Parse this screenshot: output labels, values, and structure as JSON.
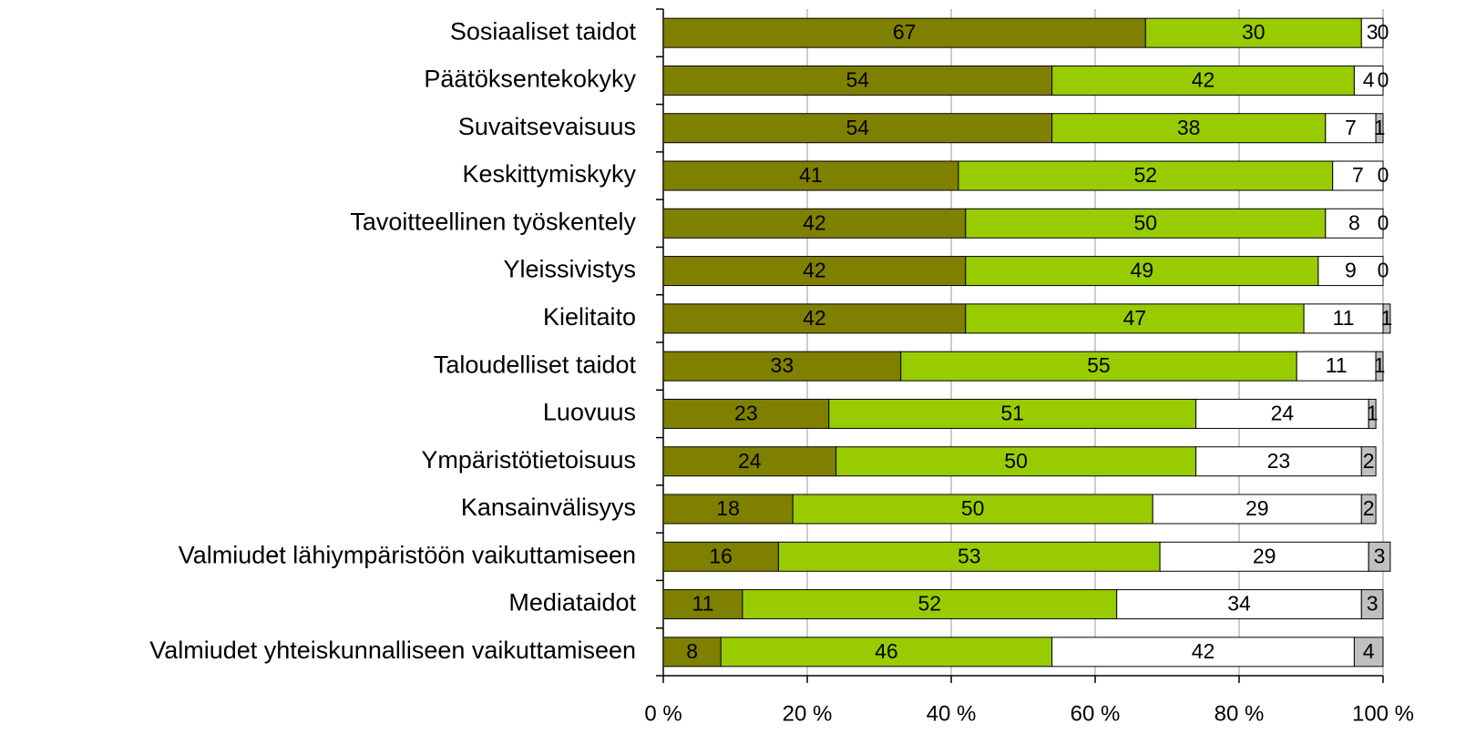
{
  "chart_data": {
    "type": "stacked-bar-horizontal",
    "categories": [
      "Sosiaaliset taidot",
      "Päätöksentekokyky",
      "Suvaitsevaisuus",
      "Keskittymiskyky",
      "Tavoitteellinen työskentely",
      "Yleissivistys",
      "Kielitaito",
      "Taloudelliset taidot",
      "Luovuus",
      "Ympäristötietoisuus",
      "Kansainvälisyys",
      "Valmiudet lähiympäristöön vaikuttamiseen",
      "Mediataidot",
      "Valmiudet yhteiskunnalliseen vaikuttamiseen"
    ],
    "series": [
      {
        "color": "#808000",
        "values": [
          67,
          54,
          54,
          41,
          42,
          42,
          42,
          33,
          23,
          24,
          18,
          16,
          11,
          8
        ]
      },
      {
        "color": "#99cc00",
        "values": [
          30,
          42,
          38,
          52,
          50,
          49,
          47,
          55,
          51,
          50,
          50,
          53,
          52,
          46
        ]
      },
      {
        "color": "#ffffff",
        "values": [
          3,
          4,
          7,
          7,
          8,
          9,
          11,
          11,
          24,
          23,
          29,
          29,
          34,
          42
        ]
      },
      {
        "color": "#c0c0c0",
        "values": [
          0,
          0,
          1,
          0,
          0,
          0,
          1,
          1,
          1,
          2,
          2,
          3,
          3,
          4
        ]
      }
    ],
    "xlim": [
      0,
      100
    ],
    "xticks": [
      {
        "value": 0,
        "label": "0 %"
      },
      {
        "value": 20,
        "label": "20 %"
      },
      {
        "value": 40,
        "label": "40 %"
      },
      {
        "value": 60,
        "label": "60 %"
      },
      {
        "value": 80,
        "label": "80 %"
      },
      {
        "value": 100,
        "label": "100 %"
      }
    ],
    "grid": true
  }
}
